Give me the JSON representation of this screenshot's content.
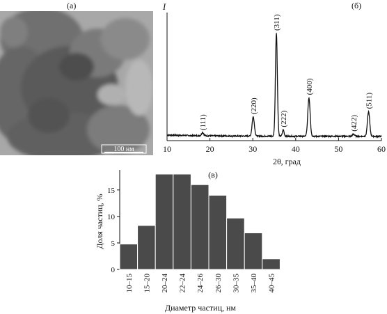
{
  "panels": {
    "a": {
      "label": "(a)",
      "scale_bar_text": "100 нм"
    },
    "b": {
      "label": "(б)"
    },
    "c": {
      "label": "(в)"
    }
  },
  "chart_data": [
    {
      "type": "line",
      "panel": "б",
      "ylabel": "I",
      "xlabel": "2θ, град",
      "xlim": [
        10,
        60
      ],
      "x_ticks": [
        "10",
        "20",
        "30",
        "40",
        "50",
        "60"
      ],
      "y_ticks_shown": false,
      "baseline_intensity": 0.04,
      "peaks": [
        {
          "label": "(111)",
          "x": 18.3,
          "intensity": 0.07
        },
        {
          "label": "(220)",
          "x": 30.1,
          "intensity": 0.22
        },
        {
          "label": "(311)",
          "x": 35.5,
          "intensity": 1.0
        },
        {
          "label": "(222)",
          "x": 37.1,
          "intensity": 0.1
        },
        {
          "label": "(400)",
          "x": 43.1,
          "intensity": 0.4
        },
        {
          "label": "(422)",
          "x": 53.5,
          "intensity": 0.06
        },
        {
          "label": "(511)",
          "x": 57.0,
          "intensity": 0.27
        }
      ]
    },
    {
      "type": "bar",
      "panel": "в",
      "categories": [
        "10–15",
        "15–20",
        "20–24",
        "22–24",
        "24–26",
        "26–30",
        "30–35",
        "35–40",
        "40–45"
      ],
      "values": [
        4.8,
        8.3,
        18.0,
        18.0,
        16.0,
        14.0,
        9.7,
        6.9,
        2.0
      ],
      "xlabel": "Диаметр частиц, нм",
      "ylabel": "Доля частиц, %",
      "ylim": [
        0,
        18
      ],
      "y_ticks": [
        0,
        5,
        10,
        15
      ],
      "bar_color": "#4a4a4a"
    }
  ]
}
